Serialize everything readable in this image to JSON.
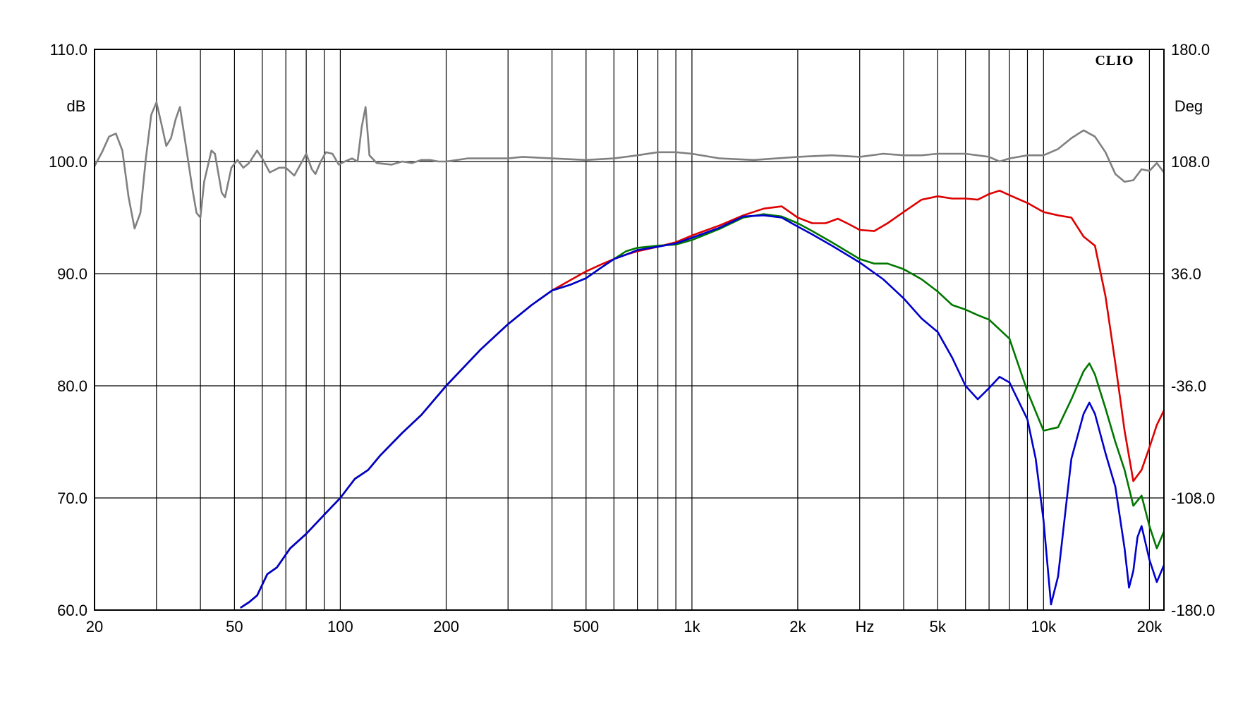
{
  "chart_data": {
    "type": "line",
    "brand": "CLIO",
    "x_unit_label": "Hz",
    "y_left_unit": "dB",
    "y_right_unit": "Deg",
    "x_scale": "log",
    "xlim": [
      20,
      22000
    ],
    "ylim_left": [
      60,
      110
    ],
    "ylim_right": [
      -180,
      180
    ],
    "grid": true,
    "x_tick_labels": [
      {
        "value": 20,
        "label": "20"
      },
      {
        "value": 50,
        "label": "50"
      },
      {
        "value": 100,
        "label": "100"
      },
      {
        "value": 200,
        "label": "200"
      },
      {
        "value": 500,
        "label": "500"
      },
      {
        "value": 1000,
        "label": "1k"
      },
      {
        "value": 2000,
        "label": "2k"
      },
      {
        "value": 5000,
        "label": "5k"
      },
      {
        "value": 10000,
        "label": "10k"
      },
      {
        "value": 20000,
        "label": "20k"
      }
    ],
    "x_gridlines": [
      30,
      40,
      50,
      60,
      70,
      80,
      90,
      100,
      200,
      300,
      400,
      500,
      600,
      700,
      800,
      900,
      1000,
      2000,
      3000,
      4000,
      5000,
      6000,
      7000,
      8000,
      9000,
      10000,
      20000
    ],
    "y_left_ticks": [
      {
        "value": 110,
        "label": "110.0"
      },
      {
        "value": 100,
        "label": "100.0"
      },
      {
        "value": 90,
        "label": "90.0"
      },
      {
        "value": 80,
        "label": "80.0"
      },
      {
        "value": 70,
        "label": "70.0"
      },
      {
        "value": 60,
        "label": "60.0"
      }
    ],
    "y_right_ticks": [
      {
        "value": 180,
        "label": "180.0"
      },
      {
        "value": 108,
        "label": "108.0"
      },
      {
        "value": 36,
        "label": "36.0"
      },
      {
        "value": -36,
        "label": "-36.0"
      },
      {
        "value": -108,
        "label": "-108.0"
      },
      {
        "value": -180,
        "label": "-180.0"
      }
    ],
    "series": [
      {
        "color": "#808080",
        "axis": "right",
        "points": [
          [
            20,
            105
          ],
          [
            21,
            114
          ],
          [
            22,
            124
          ],
          [
            23,
            126
          ],
          [
            24,
            115
          ],
          [
            25,
            85
          ],
          [
            26,
            65
          ],
          [
            27,
            75
          ],
          [
            28,
            110
          ],
          [
            29,
            138
          ],
          [
            30,
            146
          ],
          [
            31,
            132
          ],
          [
            32,
            118
          ],
          [
            33,
            123
          ],
          [
            34,
            135
          ],
          [
            35,
            143
          ],
          [
            36,
            125
          ],
          [
            38,
            90
          ],
          [
            39,
            75
          ],
          [
            40,
            72
          ],
          [
            41,
            95
          ],
          [
            43,
            115
          ],
          [
            44,
            113
          ],
          [
            46,
            88
          ],
          [
            47,
            85
          ],
          [
            49,
            104
          ],
          [
            51,
            109
          ],
          [
            53,
            104
          ],
          [
            55,
            107
          ],
          [
            58,
            115
          ],
          [
            60,
            110
          ],
          [
            63,
            101
          ],
          [
            67,
            104
          ],
          [
            70,
            104
          ],
          [
            74,
            99
          ],
          [
            77,
            106
          ],
          [
            80,
            113
          ],
          [
            83,
            103
          ],
          [
            85,
            100
          ],
          [
            88,
            108
          ],
          [
            91,
            114
          ],
          [
            95,
            113
          ],
          [
            99,
            106
          ],
          [
            103,
            108
          ],
          [
            108,
            110
          ],
          [
            112,
            108
          ],
          [
            115,
            130
          ],
          [
            118,
            143
          ],
          [
            121,
            112
          ],
          [
            127,
            107
          ],
          [
            140,
            106
          ],
          [
            150,
            108
          ],
          [
            160,
            107
          ],
          [
            170,
            109
          ],
          [
            180,
            109
          ],
          [
            190,
            108
          ],
          [
            200,
            108
          ],
          [
            230,
            110
          ],
          [
            260,
            110
          ],
          [
            300,
            110
          ],
          [
            330,
            111
          ],
          [
            400,
            110
          ],
          [
            500,
            109
          ],
          [
            600,
            110
          ],
          [
            700,
            112
          ],
          [
            800,
            114
          ],
          [
            900,
            114
          ],
          [
            1000,
            113
          ],
          [
            1200,
            110
          ],
          [
            1500,
            109
          ],
          [
            2000,
            111
          ],
          [
            2500,
            112
          ],
          [
            3000,
            111
          ],
          [
            3500,
            113
          ],
          [
            4000,
            112
          ],
          [
            4500,
            112
          ],
          [
            5000,
            113
          ],
          [
            5500,
            113
          ],
          [
            6000,
            113
          ],
          [
            7000,
            111
          ],
          [
            7500,
            108
          ],
          [
            8000,
            110
          ],
          [
            9000,
            112
          ],
          [
            10000,
            112
          ],
          [
            11000,
            116
          ],
          [
            12000,
            123
          ],
          [
            13000,
            128
          ],
          [
            14000,
            124
          ],
          [
            15000,
            114
          ],
          [
            16000,
            100
          ],
          [
            17000,
            95
          ],
          [
            18000,
            96
          ],
          [
            19000,
            103
          ],
          [
            20000,
            102
          ],
          [
            21000,
            107
          ],
          [
            22000,
            101
          ]
        ]
      },
      {
        "color": "#dd0000",
        "axis": "left",
        "points": [
          [
            52,
            60.2
          ],
          [
            55,
            60.7
          ],
          [
            58,
            61.3
          ],
          [
            62,
            63.2
          ],
          [
            66,
            63.8
          ],
          [
            72,
            65.5
          ],
          [
            80,
            66.8
          ],
          [
            90,
            68.5
          ],
          [
            100,
            70.0
          ],
          [
            110,
            71.7
          ],
          [
            120,
            72.5
          ],
          [
            130,
            73.8
          ],
          [
            150,
            75.8
          ],
          [
            170,
            77.4
          ],
          [
            200,
            80.0
          ],
          [
            250,
            83.2
          ],
          [
            300,
            85.5
          ],
          [
            350,
            87.2
          ],
          [
            400,
            88.5
          ],
          [
            450,
            89.4
          ],
          [
            500,
            90.2
          ],
          [
            550,
            90.8
          ],
          [
            600,
            91.3
          ],
          [
            650,
            91.7
          ],
          [
            700,
            92.0
          ],
          [
            800,
            92.4
          ],
          [
            900,
            92.8
          ],
          [
            1000,
            93.4
          ],
          [
            1200,
            94.3
          ],
          [
            1400,
            95.2
          ],
          [
            1600,
            95.8
          ],
          [
            1800,
            96.0
          ],
          [
            2000,
            95.0
          ],
          [
            2200,
            94.5
          ],
          [
            2400,
            94.5
          ],
          [
            2600,
            94.9
          ],
          [
            2800,
            94.4
          ],
          [
            3000,
            93.9
          ],
          [
            3300,
            93.8
          ],
          [
            3600,
            94.5
          ],
          [
            4000,
            95.5
          ],
          [
            4500,
            96.6
          ],
          [
            5000,
            96.9
          ],
          [
            5500,
            96.7
          ],
          [
            6000,
            96.7
          ],
          [
            6500,
            96.6
          ],
          [
            7000,
            97.1
          ],
          [
            7500,
            97.4
          ],
          [
            8000,
            97.0
          ],
          [
            9000,
            96.3
          ],
          [
            10000,
            95.5
          ],
          [
            11000,
            95.2
          ],
          [
            12000,
            95.0
          ],
          [
            13000,
            93.3
          ],
          [
            14000,
            92.5
          ],
          [
            15000,
            88
          ],
          [
            16000,
            82
          ],
          [
            17000,
            76
          ],
          [
            18000,
            71.5
          ],
          [
            19000,
            72.5
          ],
          [
            20000,
            74.5
          ],
          [
            21000,
            76.5
          ],
          [
            22000,
            77.8
          ]
        ]
      },
      {
        "color": "#007700",
        "axis": "left",
        "points": [
          [
            52,
            60.2
          ],
          [
            55,
            60.7
          ],
          [
            58,
            61.3
          ],
          [
            62,
            63.2
          ],
          [
            66,
            63.8
          ],
          [
            72,
            65.5
          ],
          [
            80,
            66.8
          ],
          [
            90,
            68.5
          ],
          [
            100,
            70.0
          ],
          [
            110,
            71.7
          ],
          [
            120,
            72.5
          ],
          [
            130,
            73.8
          ],
          [
            150,
            75.8
          ],
          [
            170,
            77.4
          ],
          [
            200,
            80.0
          ],
          [
            250,
            83.2
          ],
          [
            300,
            85.5
          ],
          [
            350,
            87.2
          ],
          [
            400,
            88.5
          ],
          [
            450,
            89.0
          ],
          [
            500,
            89.6
          ],
          [
            550,
            90.5
          ],
          [
            600,
            91.3
          ],
          [
            650,
            92.0
          ],
          [
            700,
            92.3
          ],
          [
            800,
            92.5
          ],
          [
            900,
            92.6
          ],
          [
            1000,
            93.0
          ],
          [
            1200,
            94.0
          ],
          [
            1400,
            95.0
          ],
          [
            1600,
            95.3
          ],
          [
            1800,
            95.1
          ],
          [
            2000,
            94.5
          ],
          [
            2200,
            93.8
          ],
          [
            2500,
            92.8
          ],
          [
            3000,
            91.3
          ],
          [
            3300,
            90.9
          ],
          [
            3600,
            90.9
          ],
          [
            4000,
            90.4
          ],
          [
            4500,
            89.5
          ],
          [
            5000,
            88.4
          ],
          [
            5500,
            87.2
          ],
          [
            6000,
            86.8
          ],
          [
            6500,
            86.3
          ],
          [
            7000,
            85.9
          ],
          [
            8000,
            84.2
          ],
          [
            9000,
            79.5
          ],
          [
            10000,
            76.0
          ],
          [
            11000,
            76.3
          ],
          [
            12000,
            78.8
          ],
          [
            13000,
            81.3
          ],
          [
            13500,
            82.0
          ],
          [
            14000,
            81.0
          ],
          [
            15000,
            78.0
          ],
          [
            16000,
            75.0
          ],
          [
            17000,
            72.5
          ],
          [
            18000,
            69.3
          ],
          [
            19000,
            70.2
          ],
          [
            20000,
            67.5
          ],
          [
            21000,
            65.5
          ],
          [
            22000,
            67.0
          ]
        ]
      },
      {
        "color": "#0000cc",
        "axis": "left",
        "points": [
          [
            52,
            60.2
          ],
          [
            55,
            60.7
          ],
          [
            58,
            61.3
          ],
          [
            62,
            63.2
          ],
          [
            66,
            63.8
          ],
          [
            72,
            65.5
          ],
          [
            80,
            66.8
          ],
          [
            90,
            68.5
          ],
          [
            100,
            70.0
          ],
          [
            110,
            71.7
          ],
          [
            120,
            72.5
          ],
          [
            130,
            73.8
          ],
          [
            150,
            75.8
          ],
          [
            170,
            77.4
          ],
          [
            200,
            80.0
          ],
          [
            250,
            83.2
          ],
          [
            300,
            85.5
          ],
          [
            350,
            87.2
          ],
          [
            400,
            88.5
          ],
          [
            450,
            89.0
          ],
          [
            500,
            89.6
          ],
          [
            550,
            90.5
          ],
          [
            600,
            91.3
          ],
          [
            650,
            91.7
          ],
          [
            700,
            92.1
          ],
          [
            800,
            92.4
          ],
          [
            900,
            92.7
          ],
          [
            1000,
            93.2
          ],
          [
            1200,
            94.1
          ],
          [
            1400,
            95.1
          ],
          [
            1600,
            95.2
          ],
          [
            1800,
            95.0
          ],
          [
            2000,
            94.2
          ],
          [
            2200,
            93.5
          ],
          [
            2500,
            92.5
          ],
          [
            3000,
            91.0
          ],
          [
            3500,
            89.5
          ],
          [
            4000,
            87.8
          ],
          [
            4500,
            86.0
          ],
          [
            5000,
            84.8
          ],
          [
            5500,
            82.5
          ],
          [
            6000,
            80.0
          ],
          [
            6500,
            78.8
          ],
          [
            7000,
            79.8
          ],
          [
            7500,
            80.8
          ],
          [
            8000,
            80.3
          ],
          [
            9000,
            77.0
          ],
          [
            9500,
            73.5
          ],
          [
            10000,
            68.0
          ],
          [
            10500,
            60.5
          ],
          [
            11000,
            63.0
          ],
          [
            12000,
            73.5
          ],
          [
            13000,
            77.5
          ],
          [
            13500,
            78.5
          ],
          [
            14000,
            77.5
          ],
          [
            15000,
            74.0
          ],
          [
            16000,
            71.0
          ],
          [
            17000,
            65.5
          ],
          [
            17500,
            62.0
          ],
          [
            18000,
            63.5
          ],
          [
            18500,
            66.5
          ],
          [
            19000,
            67.5
          ],
          [
            20000,
            64.5
          ],
          [
            21000,
            62.5
          ],
          [
            22000,
            64.0
          ]
        ]
      }
    ]
  }
}
